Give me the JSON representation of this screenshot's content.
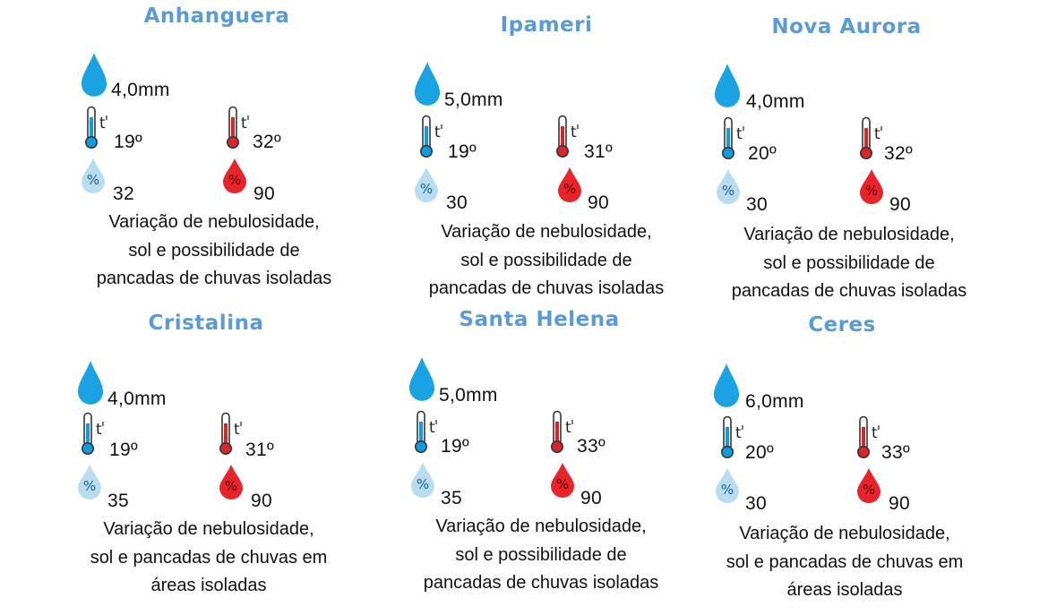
{
  "colors": {
    "title": "#5b9bd5",
    "rain": "#1aa3e2",
    "cold": "#0f9be0",
    "hot": "#d9262a",
    "humid_low": "#b8dcf0",
    "humid_high": "#e8242b"
  },
  "icons": {
    "rain": "raindrop-icon",
    "tmin": "thermometer-cold-icon",
    "tmax": "thermometer-hot-icon",
    "hmin": "humidity-low-icon",
    "hmax": "humidity-high-icon"
  },
  "cities": [
    {
      "name": "Anhanguera",
      "rain": "4,0mm",
      "tmin": "19º",
      "tmax": "32º",
      "hmin": "32",
      "hmax": "90",
      "description": [
        "Variação de nebulosidade,",
        "sol e possibilidade de",
        "pancadas de chuvas isoladas"
      ]
    },
    {
      "name": "Ipameri",
      "rain": "5,0mm",
      "tmin": "19º",
      "tmax": "31º",
      "hmin": "30",
      "hmax": "90",
      "description": [
        "Variação de nebulosidade,",
        "sol e possibilidade de",
        "pancadas de chuvas isoladas"
      ]
    },
    {
      "name": "Nova Aurora",
      "rain": "4,0mm",
      "tmin": "20º",
      "tmax": "32º",
      "hmin": "30",
      "hmax": "90",
      "description": [
        "Variação de nebulosidade,",
        "sol e possibilidade de",
        "pancadas de chuvas isoladas"
      ]
    },
    {
      "name": "Cristalina",
      "rain": "4,0mm",
      "tmin": "19º",
      "tmax": "31º",
      "hmin": "35",
      "hmax": "90",
      "description": [
        "Variação de nebulosidade,",
        "sol e pancadas de chuvas em",
        "áreas isoladas"
      ]
    },
    {
      "name": "Santa Helena",
      "rain": "5,0mm",
      "tmin": "19º",
      "tmax": "33º",
      "hmin": "35",
      "hmax": "90",
      "description": [
        "Variação de nebulosidade,",
        "sol e possibilidade de",
        "pancadas de chuvas isoladas"
      ]
    },
    {
      "name": "Ceres",
      "rain": "6,0mm",
      "tmin": "20º",
      "tmax": "33º",
      "hmin": "30",
      "hmax": "90",
      "description": [
        "Variação de nebulosidade,",
        "sol e pancadas de chuvas em",
        "áreas isoladas"
      ]
    }
  ]
}
